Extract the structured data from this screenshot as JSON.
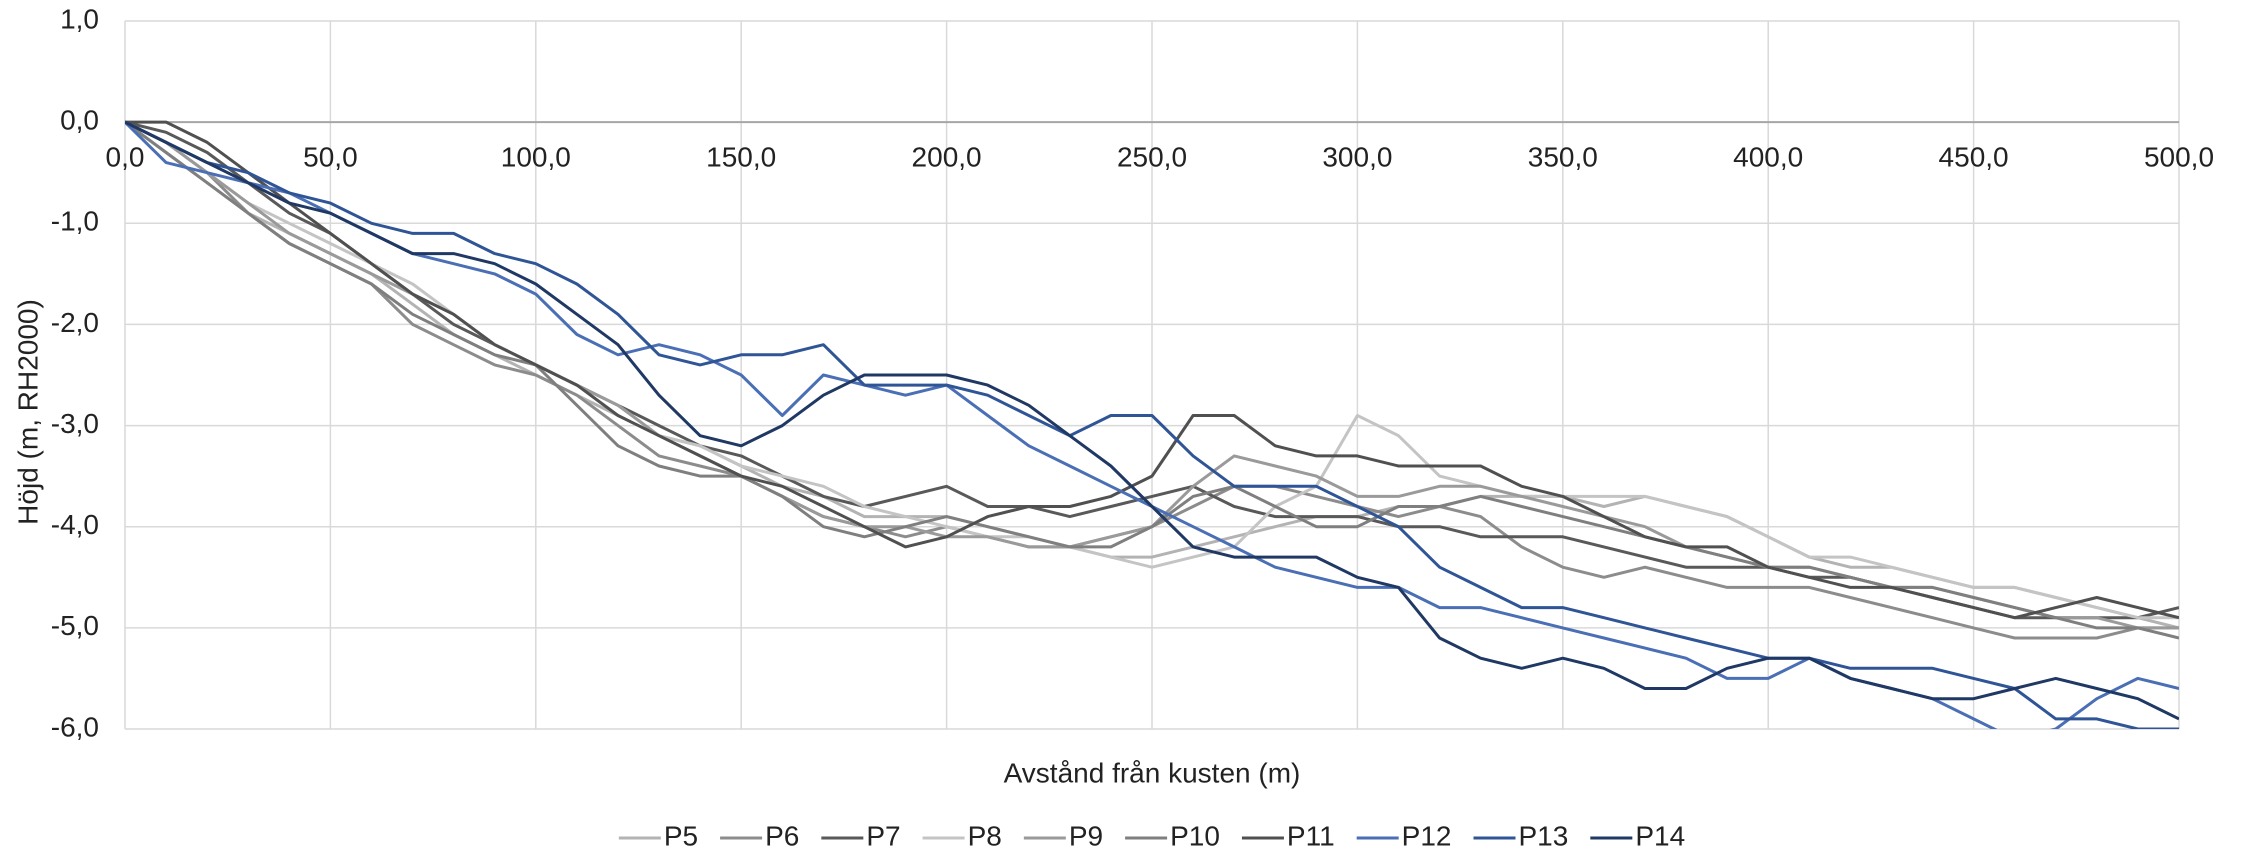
{
  "chart_data": {
    "type": "line",
    "ylabel": "Höjd (m, RH2000)",
    "xlabel": "Avstånd från kusten (m)",
    "xlim": [
      0,
      500
    ],
    "ylim": [
      -6,
      1
    ],
    "xticks": [
      {
        "value": 0,
        "label": "0,0"
      },
      {
        "value": 50,
        "label": "50,0"
      },
      {
        "value": 100,
        "label": "100,0"
      },
      {
        "value": 150,
        "label": "150,0"
      },
      {
        "value": 200,
        "label": "200,0"
      },
      {
        "value": 250,
        "label": "250,0"
      },
      {
        "value": 300,
        "label": "300,0"
      },
      {
        "value": 350,
        "label": "350,0"
      },
      {
        "value": 400,
        "label": "400,0"
      },
      {
        "value": 450,
        "label": "450,0"
      },
      {
        "value": 500,
        "label": "500,0"
      }
    ],
    "yticks": [
      {
        "value": 1,
        "label": "1,0"
      },
      {
        "value": 0,
        "label": "0,0"
      },
      {
        "value": -1,
        "label": "-1,0"
      },
      {
        "value": -2,
        "label": "-2,0"
      },
      {
        "value": -3,
        "label": "-3,0"
      },
      {
        "value": -4,
        "label": "-4,0"
      },
      {
        "value": -5,
        "label": "-5,0"
      },
      {
        "value": -6,
        "label": "-6,0"
      }
    ],
    "grid": true,
    "legend": "bottom",
    "x": [
      0,
      10,
      20,
      30,
      40,
      50,
      60,
      70,
      80,
      90,
      100,
      110,
      120,
      130,
      140,
      150,
      160,
      170,
      180,
      190,
      200,
      210,
      220,
      230,
      240,
      250,
      260,
      270,
      280,
      290,
      300,
      310,
      320,
      330,
      340,
      350,
      360,
      370,
      380,
      390,
      400,
      410,
      420,
      430,
      440,
      450,
      460,
      470,
      480,
      490,
      500
    ],
    "series": [
      {
        "name": "P5",
        "color": "#b3b3b3",
        "values": [
          0,
          -0.3,
          -0.6,
          -0.9,
          -1.1,
          -1.3,
          -1.5,
          -1.8,
          -2.1,
          -2.3,
          -2.5,
          -2.7,
          -2.9,
          -3.1,
          -3.2,
          -3.4,
          -3.6,
          -3.7,
          -3.9,
          -3.9,
          -3.9,
          -4.0,
          -4.1,
          -4.2,
          -4.3,
          -4.3,
          -4.2,
          -4.1,
          -4.0,
          -3.9,
          -3.9,
          -3.8,
          -3.8,
          -3.7,
          -3.7,
          -3.7,
          -3.8,
          -3.7,
          -3.8,
          -3.9,
          -4.1,
          -4.3,
          -4.4,
          -4.4,
          -4.5,
          -4.6,
          -4.6,
          -4.7,
          -4.8,
          -4.9,
          -5.0
        ]
      },
      {
        "name": "P6",
        "color": "#8c8c8c",
        "values": [
          0,
          -0.2,
          -0.5,
          -0.9,
          -1.2,
          -1.4,
          -1.6,
          -2.0,
          -2.2,
          -2.4,
          -2.5,
          -2.7,
          -3.0,
          -3.3,
          -3.4,
          -3.5,
          -3.7,
          -3.9,
          -4.0,
          -4.1,
          -4.0,
          -4.1,
          -4.2,
          -4.2,
          -4.1,
          -4.0,
          -3.8,
          -3.6,
          -3.6,
          -3.7,
          -3.8,
          -3.9,
          -3.8,
          -3.9,
          -4.2,
          -4.4,
          -4.5,
          -4.4,
          -4.5,
          -4.6,
          -4.6,
          -4.6,
          -4.7,
          -4.8,
          -4.9,
          -5.0,
          -5.1,
          -5.1,
          -5.1,
          -5.0,
          -5.0
        ]
      },
      {
        "name": "P7",
        "color": "#595959",
        "values": [
          0,
          -0.1,
          -0.3,
          -0.6,
          -0.9,
          -1.1,
          -1.4,
          -1.7,
          -2.0,
          -2.2,
          -2.4,
          -2.6,
          -2.8,
          -3.0,
          -3.2,
          -3.3,
          -3.5,
          -3.7,
          -3.8,
          -3.7,
          -3.6,
          -3.8,
          -3.8,
          -3.9,
          -3.8,
          -3.7,
          -3.6,
          -3.8,
          -3.9,
          -3.9,
          -3.9,
          -4.0,
          -4.0,
          -4.1,
          -4.1,
          -4.1,
          -4.2,
          -4.3,
          -4.4,
          -4.4,
          -4.4,
          -4.5,
          -4.5,
          -4.6,
          -4.7,
          -4.8,
          -4.9,
          -4.9,
          -4.9,
          -4.9,
          -4.8
        ]
      },
      {
        "name": "P8",
        "color": "#c4c4c4",
        "values": [
          0,
          -0.2,
          -0.5,
          -0.8,
          -1.0,
          -1.2,
          -1.4,
          -1.6,
          -1.9,
          -2.2,
          -2.4,
          -2.6,
          -2.8,
          -3.1,
          -3.2,
          -3.4,
          -3.5,
          -3.6,
          -3.8,
          -3.9,
          -4.0,
          -4.1,
          -4.1,
          -4.2,
          -4.3,
          -4.4,
          -4.3,
          -4.2,
          -3.8,
          -3.6,
          -2.9,
          -3.1,
          -3.5,
          -3.6,
          -3.7,
          -3.7,
          -3.7,
          -3.7,
          -3.8,
          -3.9,
          -4.1,
          -4.3,
          -4.3,
          -4.4,
          -4.5,
          -4.6,
          -4.6,
          -4.7,
          -4.8,
          -4.9,
          -4.9
        ]
      },
      {
        "name": "P9",
        "color": "#9a9a9a",
        "values": [
          0,
          -0.2,
          -0.5,
          -0.8,
          -1.1,
          -1.3,
          -1.5,
          -1.7,
          -1.9,
          -2.2,
          -2.4,
          -2.6,
          -2.8,
          -3.1,
          -3.3,
          -3.5,
          -3.7,
          -3.9,
          -4.0,
          -4.0,
          -4.1,
          -4.1,
          -4.2,
          -4.2,
          -4.1,
          -4.0,
          -3.6,
          -3.3,
          -3.4,
          -3.5,
          -3.7,
          -3.7,
          -3.6,
          -3.6,
          -3.7,
          -3.8,
          -3.9,
          -4.0,
          -4.2,
          -4.3,
          -4.4,
          -4.4,
          -4.5,
          -4.6,
          -4.6,
          -4.7,
          -4.8,
          -4.9,
          -4.9,
          -5.0,
          -5.0
        ]
      },
      {
        "name": "P10",
        "color": "#7f7f7f",
        "values": [
          0,
          -0.3,
          -0.6,
          -0.9,
          -1.2,
          -1.4,
          -1.6,
          -1.9,
          -2.1,
          -2.3,
          -2.4,
          -2.8,
          -3.2,
          -3.4,
          -3.5,
          -3.5,
          -3.7,
          -4.0,
          -4.1,
          -4.0,
          -3.9,
          -4.0,
          -4.1,
          -4.2,
          -4.2,
          -4.0,
          -3.7,
          -3.6,
          -3.8,
          -4.0,
          -4.0,
          -3.8,
          -3.8,
          -3.7,
          -3.8,
          -3.9,
          -4.0,
          -4.1,
          -4.2,
          -4.3,
          -4.4,
          -4.4,
          -4.5,
          -4.6,
          -4.6,
          -4.7,
          -4.8,
          -4.9,
          -5.0,
          -5.0,
          -5.1
        ]
      },
      {
        "name": "P11",
        "color": "#505050",
        "values": [
          0,
          0,
          -0.2,
          -0.5,
          -0.8,
          -1.1,
          -1.4,
          -1.7,
          -1.9,
          -2.2,
          -2.4,
          -2.6,
          -2.9,
          -3.1,
          -3.3,
          -3.5,
          -3.6,
          -3.8,
          -4.0,
          -4.2,
          -4.1,
          -3.9,
          -3.8,
          -3.8,
          -3.7,
          -3.5,
          -2.9,
          -2.9,
          -3.2,
          -3.3,
          -3.3,
          -3.4,
          -3.4,
          -3.4,
          -3.6,
          -3.7,
          -3.9,
          -4.1,
          -4.2,
          -4.2,
          -4.4,
          -4.5,
          -4.6,
          -4.6,
          -4.7,
          -4.8,
          -4.9,
          -4.8,
          -4.7,
          -4.8,
          -4.9
        ]
      },
      {
        "name": "P12",
        "color": "#4a6fb5",
        "values": [
          0,
          -0.4,
          -0.5,
          -0.6,
          -0.7,
          -0.9,
          -1.1,
          -1.3,
          -1.4,
          -1.5,
          -1.7,
          -2.1,
          -2.3,
          -2.2,
          -2.3,
          -2.5,
          -2.9,
          -2.5,
          -2.6,
          -2.7,
          -2.6,
          -2.9,
          -3.2,
          -3.4,
          -3.6,
          -3.8,
          -4.0,
          -4.2,
          -4.4,
          -4.5,
          -4.6,
          -4.6,
          -4.8,
          -4.8,
          -4.9,
          -5.0,
          -5.1,
          -5.2,
          -5.3,
          -5.5,
          -5.5,
          -5.3,
          -5.5,
          -5.6,
          -5.7,
          -5.9,
          -6.1,
          -6.0,
          -5.7,
          -5.5,
          -5.6
        ]
      },
      {
        "name": "P13",
        "color": "#2f5597",
        "values": [
          0,
          -0.2,
          -0.4,
          -0.5,
          -0.7,
          -0.8,
          -1.0,
          -1.1,
          -1.1,
          -1.3,
          -1.4,
          -1.6,
          -1.9,
          -2.3,
          -2.4,
          -2.3,
          -2.3,
          -2.2,
          -2.6,
          -2.6,
          -2.6,
          -2.7,
          -2.9,
          -3.1,
          -2.9,
          -2.9,
          -3.3,
          -3.6,
          -3.6,
          -3.6,
          -3.8,
          -4.0,
          -4.4,
          -4.6,
          -4.8,
          -4.8,
          -4.9,
          -5.0,
          -5.1,
          -5.2,
          -5.3,
          -5.3,
          -5.4,
          -5.4,
          -5.4,
          -5.5,
          -5.6,
          -5.9,
          -5.9,
          -6.0,
          -6.0
        ]
      },
      {
        "name": "P14",
        "color": "#1f3864",
        "values": [
          0,
          -0.2,
          -0.4,
          -0.6,
          -0.8,
          -0.9,
          -1.1,
          -1.3,
          -1.3,
          -1.4,
          -1.6,
          -1.9,
          -2.2,
          -2.7,
          -3.1,
          -3.2,
          -3.0,
          -2.7,
          -2.5,
          -2.5,
          -2.5,
          -2.6,
          -2.8,
          -3.1,
          -3.4,
          -3.8,
          -4.2,
          -4.3,
          -4.3,
          -4.3,
          -4.5,
          -4.6,
          -5.1,
          -5.3,
          -5.4,
          -5.3,
          -5.4,
          -5.6,
          -5.6,
          -5.4,
          -5.3,
          -5.3,
          -5.5,
          -5.6,
          -5.7,
          -5.7,
          -5.6,
          -5.5,
          -5.6,
          -5.7,
          -5.9
        ]
      }
    ]
  }
}
